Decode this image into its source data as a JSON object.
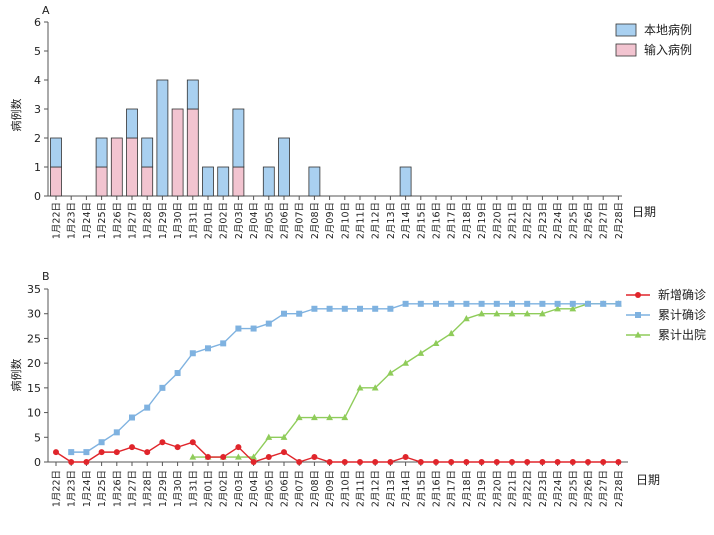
{
  "chart_data": [
    {
      "panel_label": "A",
      "type": "bar",
      "stacked": true,
      "ylabel": "病例数",
      "xlabel": "日期",
      "ylim": [
        0,
        6
      ],
      "yticks": [
        0,
        1,
        2,
        3,
        4,
        5,
        6
      ],
      "legend_position": "top-right",
      "categories": [
        "1月22日",
        "1月23日",
        "1月24日",
        "1月25日",
        "1月26日",
        "1月27日",
        "1月28日",
        "1月29日",
        "1月30日",
        "1月31日",
        "2月01日",
        "2月02日",
        "2月03日",
        "2月04日",
        "2月05日",
        "2月06日",
        "2月07日",
        "2月08日",
        "2月09日",
        "2月10日",
        "2月11日",
        "2月12日",
        "2月13日",
        "2月14日",
        "2月15日",
        "2月16日",
        "2月17日",
        "2月18日",
        "2月19日",
        "2月20日",
        "2月21日",
        "2月22日",
        "2月23日",
        "2月24日",
        "2月25日",
        "2月26日",
        "2月27日",
        "2月28日"
      ],
      "series": [
        {
          "name": "输入病例",
          "color": "#f2c4d0",
          "values": [
            1,
            0,
            0,
            1,
            2,
            2,
            1,
            0,
            3,
            3,
            0,
            0,
            1,
            0,
            0,
            0,
            0,
            0,
            0,
            0,
            0,
            0,
            0,
            0,
            0,
            0,
            0,
            0,
            0,
            0,
            0,
            0,
            0,
            0,
            0,
            0,
            0,
            0
          ]
        },
        {
          "name": "本地病例",
          "color": "#a9d0f0",
          "values": [
            1,
            0,
            0,
            1,
            0,
            1,
            1,
            4,
            0,
            1,
            1,
            1,
            2,
            0,
            1,
            2,
            0,
            1,
            0,
            0,
            0,
            0,
            0,
            1,
            0,
            0,
            0,
            0,
            0,
            0,
            0,
            0,
            0,
            0,
            0,
            0,
            0,
            0
          ]
        }
      ],
      "legend_order": [
        "本地病例",
        "输入病例"
      ]
    },
    {
      "panel_label": "B",
      "type": "line",
      "ylabel": "病例数",
      "xlabel": "日期",
      "ylim": [
        0,
        35
      ],
      "yticks": [
        0,
        5,
        10,
        15,
        20,
        25,
        30,
        35
      ],
      "legend_position": "top-right",
      "categories": [
        "1月22日",
        "1月23日",
        "1月24日",
        "1月25日",
        "1月26日",
        "1月27日",
        "1月28日",
        "1月29日",
        "1月30日",
        "1月31日",
        "2月01日",
        "2月02日",
        "2月03日",
        "2月04日",
        "2月05日",
        "2月06日",
        "2月07日",
        "2月08日",
        "2月09日",
        "2月10日",
        "2月11日",
        "2月12日",
        "2月13日",
        "2月14日",
        "2月15日",
        "2月16日",
        "2月17日",
        "2月18日",
        "2月19日",
        "2月20日",
        "2月21日",
        "2月22日",
        "2月23日",
        "2月24日",
        "2月25日",
        "2月26日",
        "2月27日",
        "2月28日"
      ],
      "series": [
        {
          "name": "新增确诊",
          "color": "#e0252b",
          "marker": "circle",
          "values": [
            2,
            0,
            0,
            2,
            2,
            3,
            2,
            4,
            3,
            4,
            1,
            1,
            3,
            0,
            1,
            2,
            0,
            1,
            0,
            0,
            0,
            0,
            0,
            1,
            0,
            0,
            0,
            0,
            0,
            0,
            0,
            0,
            0,
            0,
            0,
            0,
            0,
            0
          ]
        },
        {
          "name": "累计确诊",
          "color": "#7fb2e0",
          "marker": "square",
          "values": [
            null,
            2,
            2,
            4,
            6,
            9,
            11,
            15,
            18,
            22,
            23,
            24,
            27,
            27,
            28,
            30,
            30,
            31,
            31,
            31,
            31,
            31,
            31,
            32,
            32,
            32,
            32,
            32,
            32,
            32,
            32,
            32,
            32,
            32,
            32,
            32,
            32,
            32
          ]
        },
        {
          "name": "累计出院",
          "color": "#8fcc5a",
          "marker": "triangle",
          "values": [
            null,
            null,
            null,
            null,
            null,
            null,
            null,
            null,
            null,
            1,
            1,
            1,
            1,
            1,
            5,
            5,
            9,
            9,
            9,
            9,
            15,
            15,
            18,
            20,
            22,
            24,
            26,
            29,
            30,
            30,
            30,
            30,
            30,
            31,
            31,
            32,
            32,
            32
          ]
        }
      ]
    }
  ]
}
